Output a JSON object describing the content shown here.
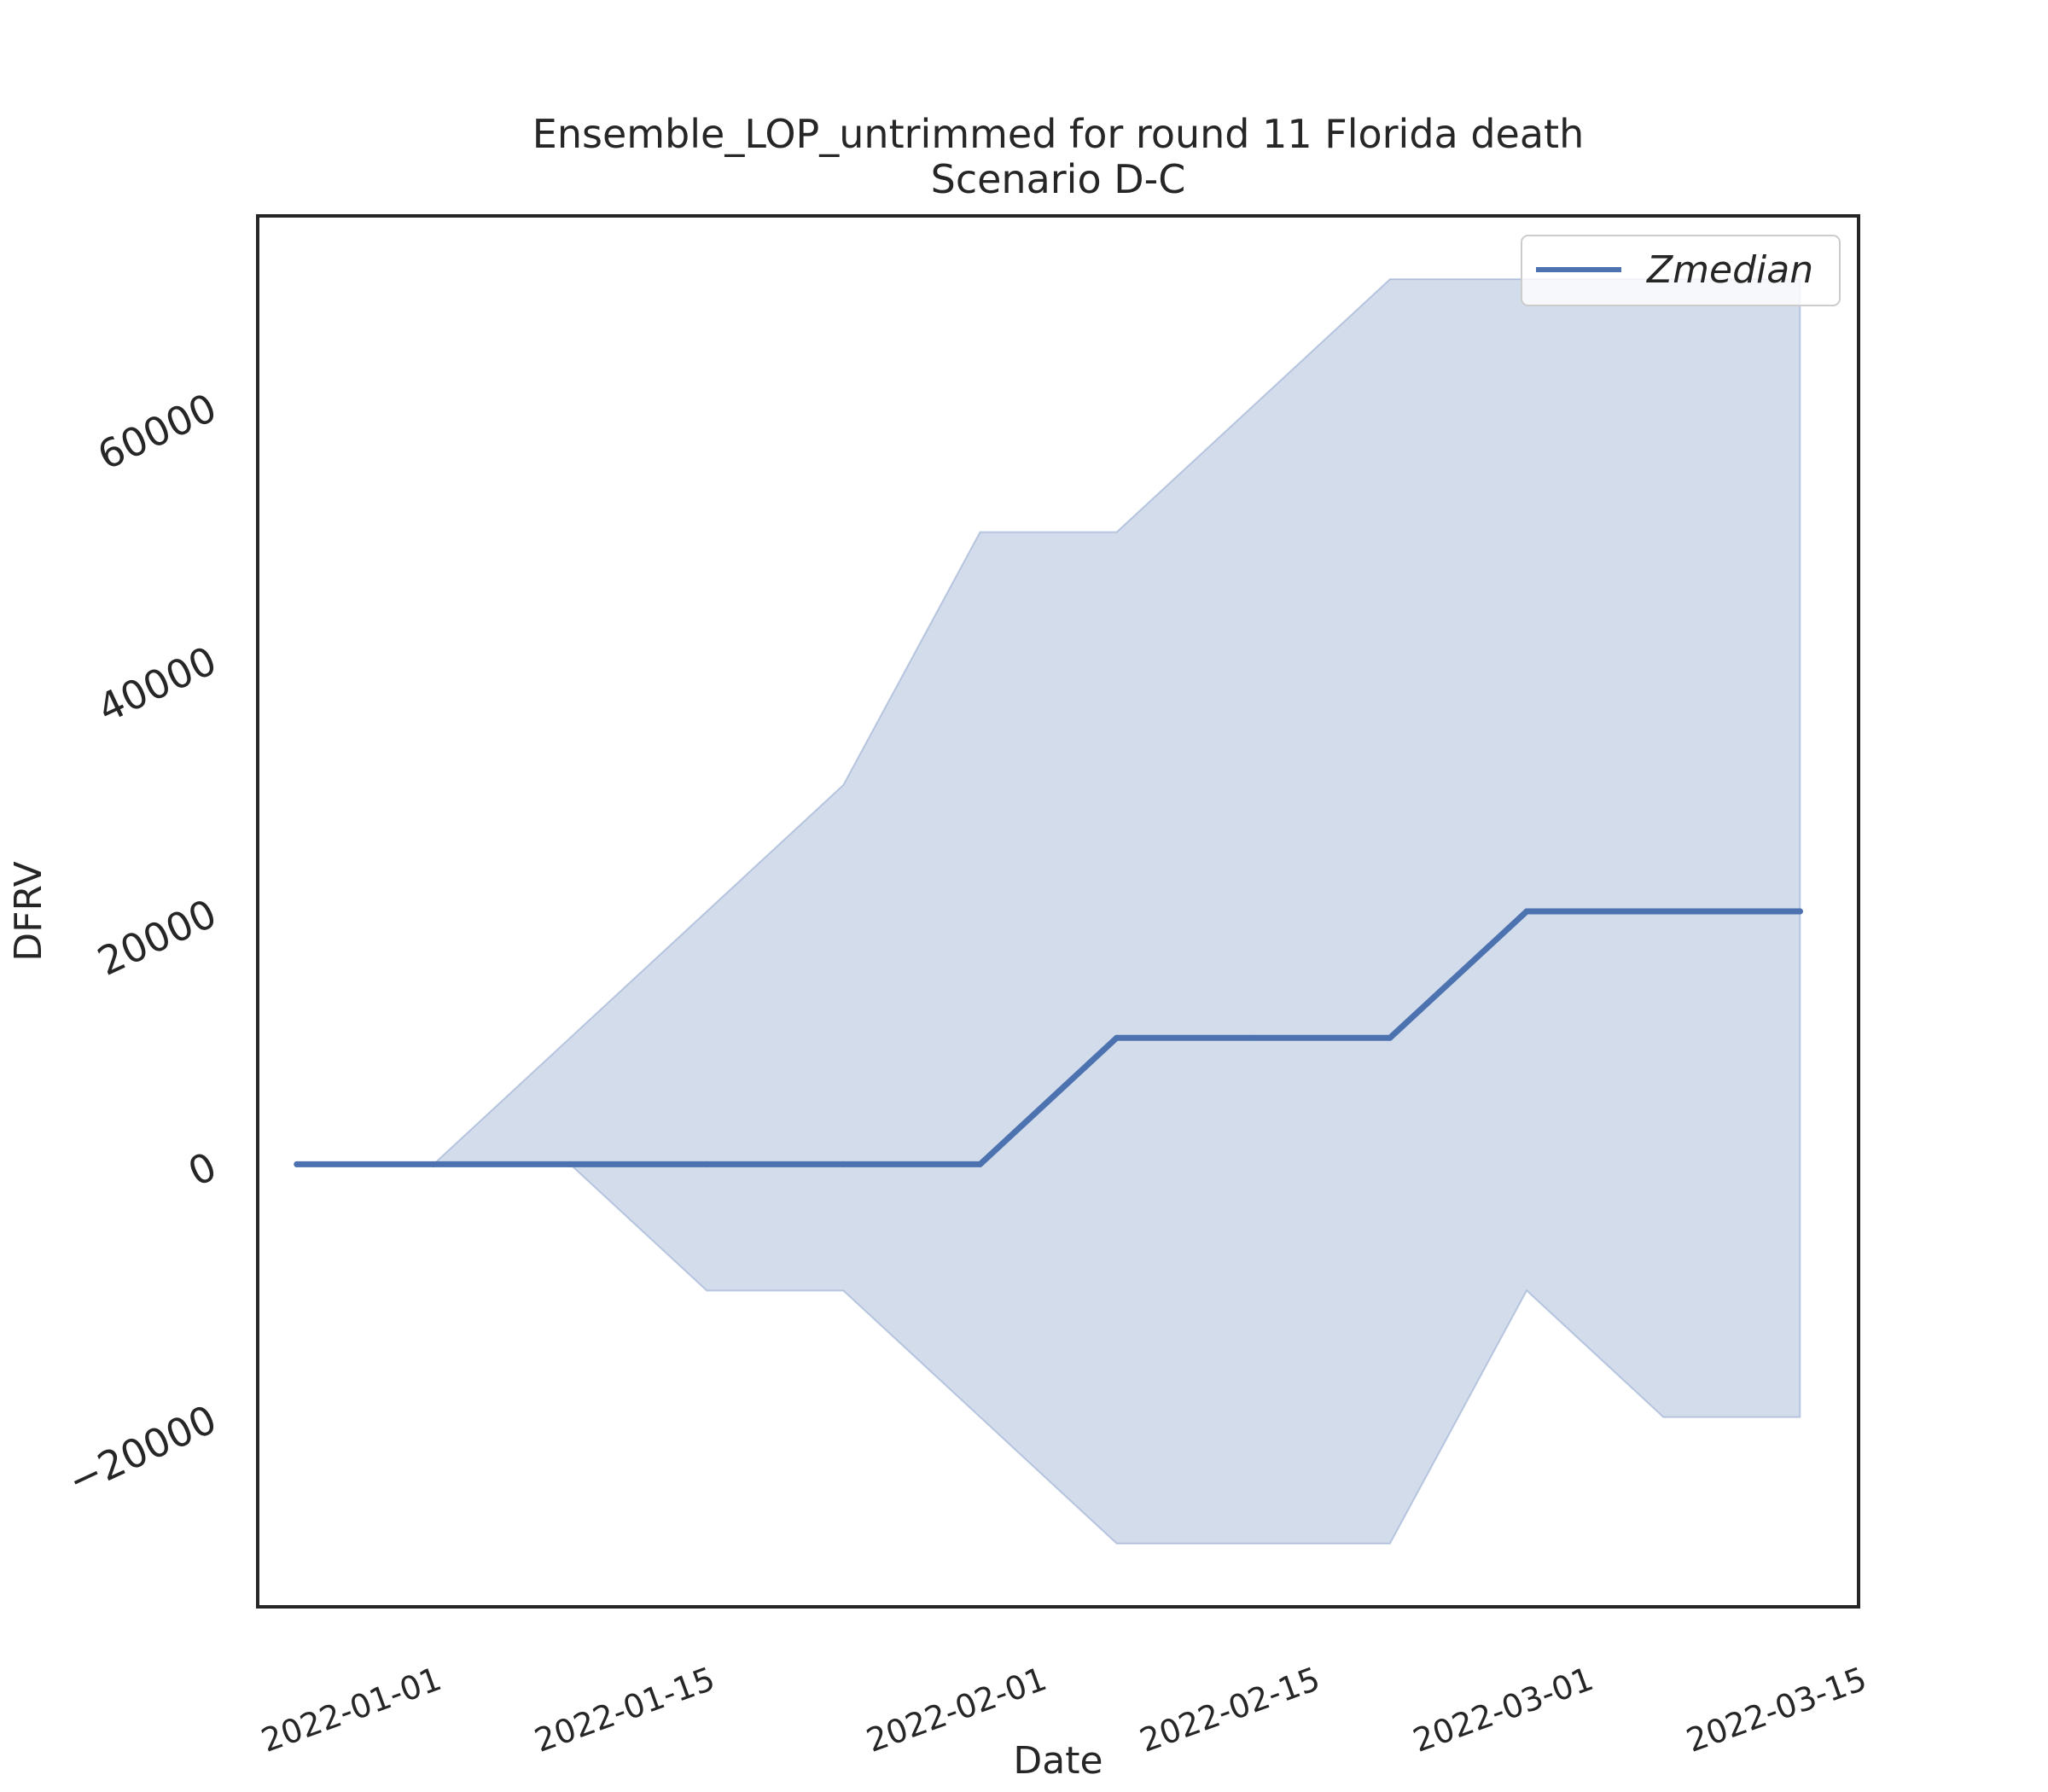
{
  "chart_data": {
    "type": "line",
    "title": "Ensemble_LOP_untrimmed for round 11 Florida death",
    "subtitle": "Scenario D-C",
    "xlabel": "Date",
    "ylabel": "DFRV",
    "x": [
      "2021-12-25",
      "2022-01-01",
      "2022-01-08",
      "2022-01-15",
      "2022-01-22",
      "2022-01-29",
      "2022-02-05",
      "2022-02-12",
      "2022-02-19",
      "2022-02-26",
      "2022-03-05",
      "2022-03-12"
    ],
    "series": [
      {
        "name": "Zmedian",
        "values": [
          0,
          0,
          0,
          0,
          0,
          0,
          10000,
          10000,
          10000,
          20000,
          20000,
          20000
        ],
        "color": "#4c72b0"
      }
    ],
    "band": {
      "lower": [
        0,
        0,
        0,
        -10000,
        -10000,
        -20000,
        -30000,
        -30000,
        -30000,
        -10000,
        -20000,
        -20000
      ],
      "upper": [
        0,
        0,
        10000,
        20000,
        30000,
        50000,
        50000,
        60000,
        70000,
        70000,
        70000,
        70000
      ],
      "color": "#4c72b0",
      "opacity": 0.25
    },
    "xticks": [
      "2022-01-01",
      "2022-01-15",
      "2022-02-01",
      "2022-02-15",
      "2022-03-01",
      "2022-03-15"
    ],
    "yticks": [
      -20000,
      0,
      20000,
      40000,
      60000
    ],
    "xlim": [
      "2021-12-23",
      "2022-03-15"
    ],
    "ylim": [
      -35000,
      75000
    ],
    "grid": false,
    "legend": "top-right"
  }
}
